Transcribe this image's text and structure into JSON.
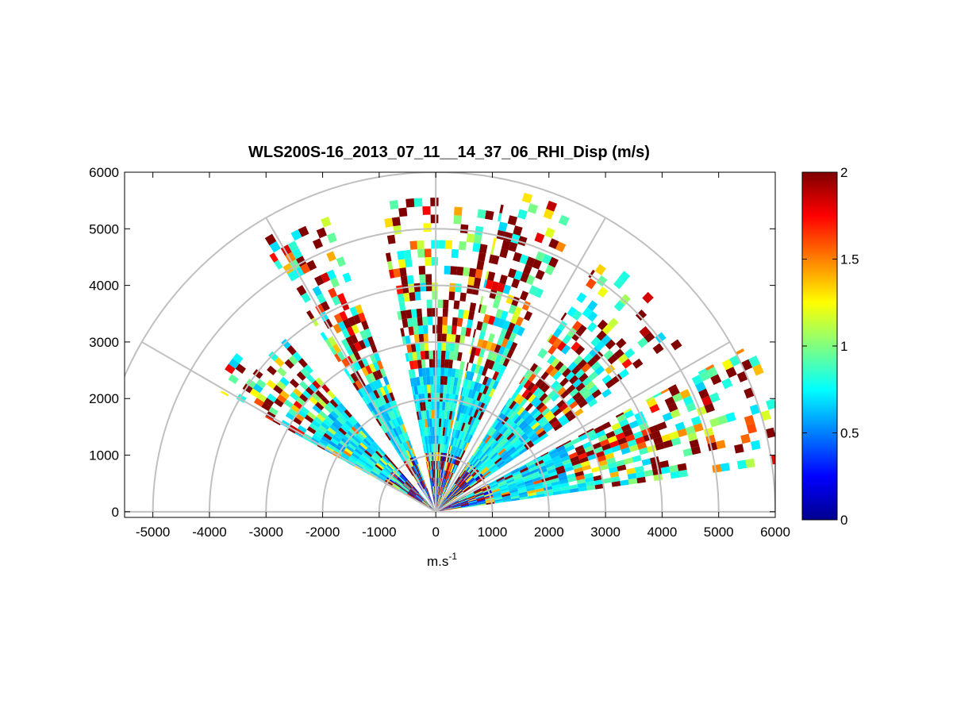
{
  "chart_data": {
    "type": "heatmap",
    "subtype": "polar RHI sector plot",
    "title": "WLS200S-16_2013_07_11__14_37_06_RHI_Disp (m/s)",
    "xlabel_base": "m.s",
    "xlabel_exp": "-1",
    "ylabel": "",
    "xlim": [
      -5500,
      6000
    ],
    "ylim": [
      -100,
      6000
    ],
    "xticks": [
      "-5000",
      "-4000",
      "-3000",
      "-2000",
      "-1000",
      "0",
      "1000",
      "2000",
      "3000",
      "4000",
      "5000",
      "6000"
    ],
    "xtick_values": [
      -5000,
      -4000,
      -3000,
      -2000,
      -1000,
      0,
      1000,
      2000,
      3000,
      4000,
      5000,
      6000
    ],
    "yticks": [
      "0",
      "1000",
      "2000",
      "3000",
      "4000",
      "5000",
      "6000"
    ],
    "ytick_values": [
      0,
      1000,
      2000,
      3000,
      4000,
      5000,
      6000
    ],
    "polar_grid": {
      "ring_radii": [
        1000,
        2000,
        3000,
        4000,
        5000,
        6000
      ],
      "spoke_angles_deg": [
        0,
        30,
        60,
        90,
        120,
        150,
        180
      ]
    },
    "colorbar": {
      "colormap": "jet",
      "range": [
        0,
        2
      ],
      "ticks": [
        "0",
        "0.5",
        "1",
        "1.5",
        "2"
      ],
      "tick_values": [
        0,
        0.5,
        1,
        1.5,
        2
      ]
    },
    "sectors": [
      {
        "from_deg": 8,
        "to_deg": 28,
        "max_range": 6300
      },
      {
        "from_deg": 34,
        "to_deg": 57,
        "max_range": 5400
      },
      {
        "from_deg": 64,
        "to_deg": 78,
        "max_range": 5800
      },
      {
        "from_deg": 79,
        "to_deg": 101,
        "max_range": 5500
      },
      {
        "from_deg": 110,
        "to_deg": 123,
        "max_range": 5600
      },
      {
        "from_deg": 131,
        "to_deg": 151,
        "max_range": 4500
      }
    ],
    "range_gate_m": 150,
    "value_distribution": "near range (<1000 m) mixed 0-2; 1000-2500 m mostly 0.6-0.9; beyond 2500 m mixed 0.7-2 with many saturated values of 2"
  }
}
